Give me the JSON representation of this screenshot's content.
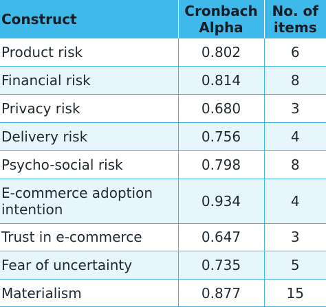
{
  "header": {
    "construct": "Construct",
    "alpha_line1": "Cronbach",
    "alpha_line2": "Alpha",
    "items_line1": "No. of",
    "items_line2": "items"
  },
  "rows": [
    {
      "construct": "Product risk",
      "alpha": "0.802",
      "items": "6"
    },
    {
      "construct": "Financial risk",
      "alpha": "0.814",
      "items": "8"
    },
    {
      "construct": "Privacy risk",
      "alpha": "0.680",
      "items": "3"
    },
    {
      "construct": "Delivery risk",
      "alpha": "0.756",
      "items": "4"
    },
    {
      "construct": "Psycho-social risk",
      "alpha": "0.798",
      "items": "8"
    },
    {
      "construct_line1": "E-commerce adoption",
      "construct_line2": "intention",
      "alpha": "0.934",
      "items": "4"
    },
    {
      "construct": "Trust in e-commerce",
      "alpha": "0.647",
      "items": "3"
    },
    {
      "construct": "Fear of uncertainty",
      "alpha": "0.735",
      "items": "5"
    },
    {
      "construct": "Materialism",
      "alpha": "0.877",
      "items": "15"
    }
  ],
  "colors": {
    "header_bg": "#3fb9ea",
    "stripe_bg": "#e7f5fc",
    "grid": "#40b8e8"
  }
}
